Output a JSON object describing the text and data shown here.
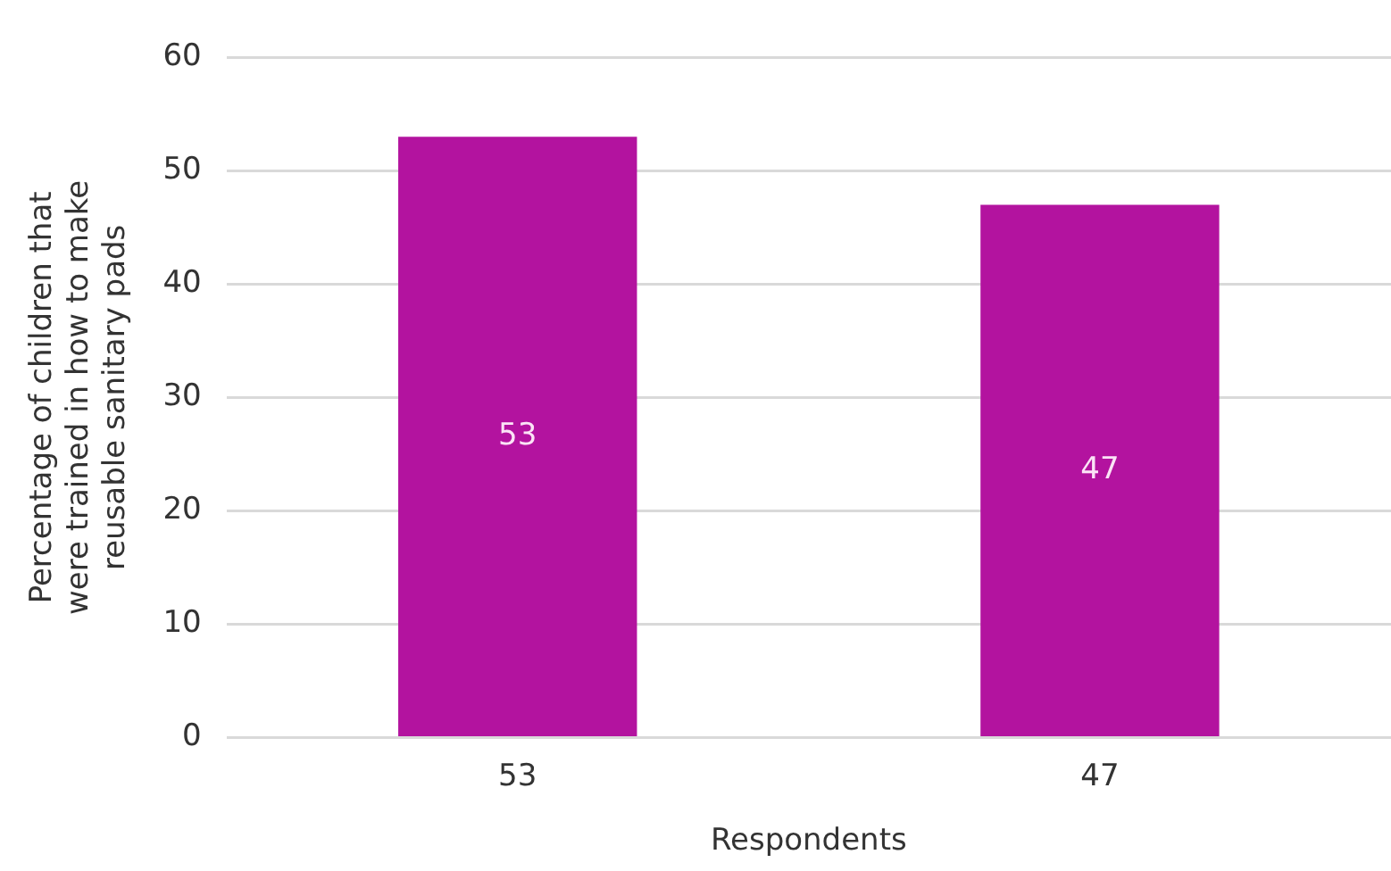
{
  "chart_data": {
    "type": "bar",
    "categories": [
      "53",
      "47"
    ],
    "values": [
      53,
      47
    ],
    "color": "#b3139f",
    "ylabel": "Percentage of children that were trained in how to make reusable sanitary pads",
    "xlabel": "Respondents",
    "ylim": [
      0,
      60
    ],
    "yticks": [
      0,
      10,
      20,
      30,
      40,
      50,
      60
    ],
    "grid": "y",
    "legend": false,
    "data_labels": true
  }
}
